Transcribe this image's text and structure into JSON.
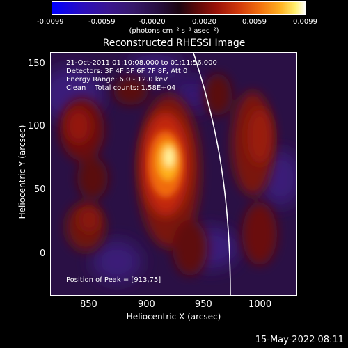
{
  "colorbar": {
    "ticks": [
      "-0.0099",
      "-0.0059",
      "-0.0020",
      "0.0020",
      "0.0059",
      "0.0099"
    ],
    "units": "(photons cm⁻² s⁻¹ asec⁻²)"
  },
  "title": "Reconstructed RHESSI Image",
  "info": {
    "line1": "21-Oct-2011 01:10:08.000 to 01:11:56.000",
    "line2": "Detectors: 3F 4F 5F 6F 7F 8F, Att 0",
    "line3": "Energy Range: 6.0 - 12.0 keV",
    "line4": "Clean    Total counts: 1.58E+04",
    "peak": "Position of Peak = [913,75]"
  },
  "x_axis": {
    "label": "Heliocentric X (arcsec)",
    "ticks": [
      "850",
      "900",
      "950",
      "1000"
    ]
  },
  "y_axis": {
    "label": "Heliocentric Y (arcsec)",
    "ticks": [
      "150",
      "100",
      "50",
      "0"
    ]
  },
  "timestamp": "15-May-2022 08:11"
}
